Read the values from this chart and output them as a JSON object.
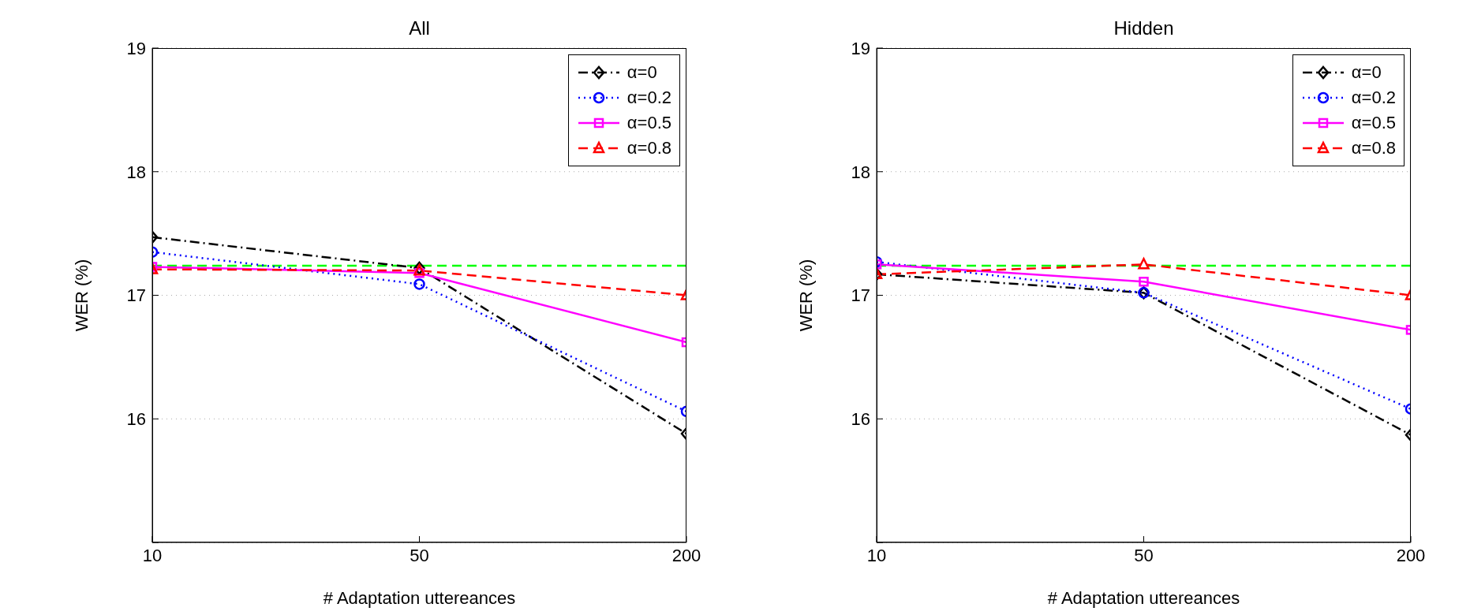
{
  "chart_data": [
    {
      "type": "line",
      "title": "All",
      "xlabel": "# Adaptation uttereances",
      "ylabel": "WER (%)",
      "categories": [
        "10",
        "50",
        "200"
      ],
      "ylim": [
        15,
        19
      ],
      "yticks": [
        {
          "value": 15,
          "label": null
        },
        16,
        17,
        18,
        19
      ],
      "grid": "y",
      "legend": "top right",
      "series": [
        {
          "name": "α=0",
          "color": "#000000",
          "marker": "diamond",
          "line_style": "dashdot",
          "values": [
            17.47,
            17.22,
            15.88
          ]
        },
        {
          "name": "α=0.2",
          "color": "#0000ff",
          "marker": "circle",
          "line_style": "dotted",
          "values": [
            17.35,
            17.09,
            16.06
          ]
        },
        {
          "name": "α=0.5",
          "color": "#ff00ff",
          "marker": "square",
          "line_style": "solid",
          "values": [
            17.23,
            17.18,
            16.62
          ]
        },
        {
          "name": "α=0.8",
          "color": "#ff0000",
          "marker": "triangle",
          "line_style": "dashed",
          "values": [
            17.21,
            17.2,
            17.0
          ]
        }
      ],
      "ref_lines": [
        {
          "axis": "y",
          "value": 17.24,
          "color": "#00ff00",
          "line_style": "dashed"
        }
      ]
    },
    {
      "type": "line",
      "title": "Hidden",
      "xlabel": "# Adaptation uttereances",
      "ylabel": "WER (%)",
      "categories": [
        "10",
        "50",
        "200"
      ],
      "ylim": [
        15,
        19
      ],
      "yticks": [
        {
          "value": 15,
          "label": null
        },
        16,
        17,
        18,
        19
      ],
      "grid": "y",
      "legend": "top right",
      "series": [
        {
          "name": "α=0",
          "color": "#000000",
          "marker": "diamond",
          "line_style": "dashdot",
          "values": [
            17.17,
            17.02,
            15.87
          ]
        },
        {
          "name": "α=0.2",
          "color": "#0000ff",
          "marker": "circle",
          "line_style": "dotted",
          "values": [
            17.27,
            17.02,
            16.08
          ]
        },
        {
          "name": "α=0.5",
          "color": "#ff00ff",
          "marker": "square",
          "line_style": "solid",
          "values": [
            17.25,
            17.11,
            16.72
          ]
        },
        {
          "name": "α=0.8",
          "color": "#ff0000",
          "marker": "triangle",
          "line_style": "dashed",
          "values": [
            17.17,
            17.25,
            17.0
          ]
        }
      ],
      "ref_lines": [
        {
          "axis": "y",
          "value": 17.24,
          "color": "#00ff00",
          "line_style": "dashed"
        }
      ]
    }
  ]
}
